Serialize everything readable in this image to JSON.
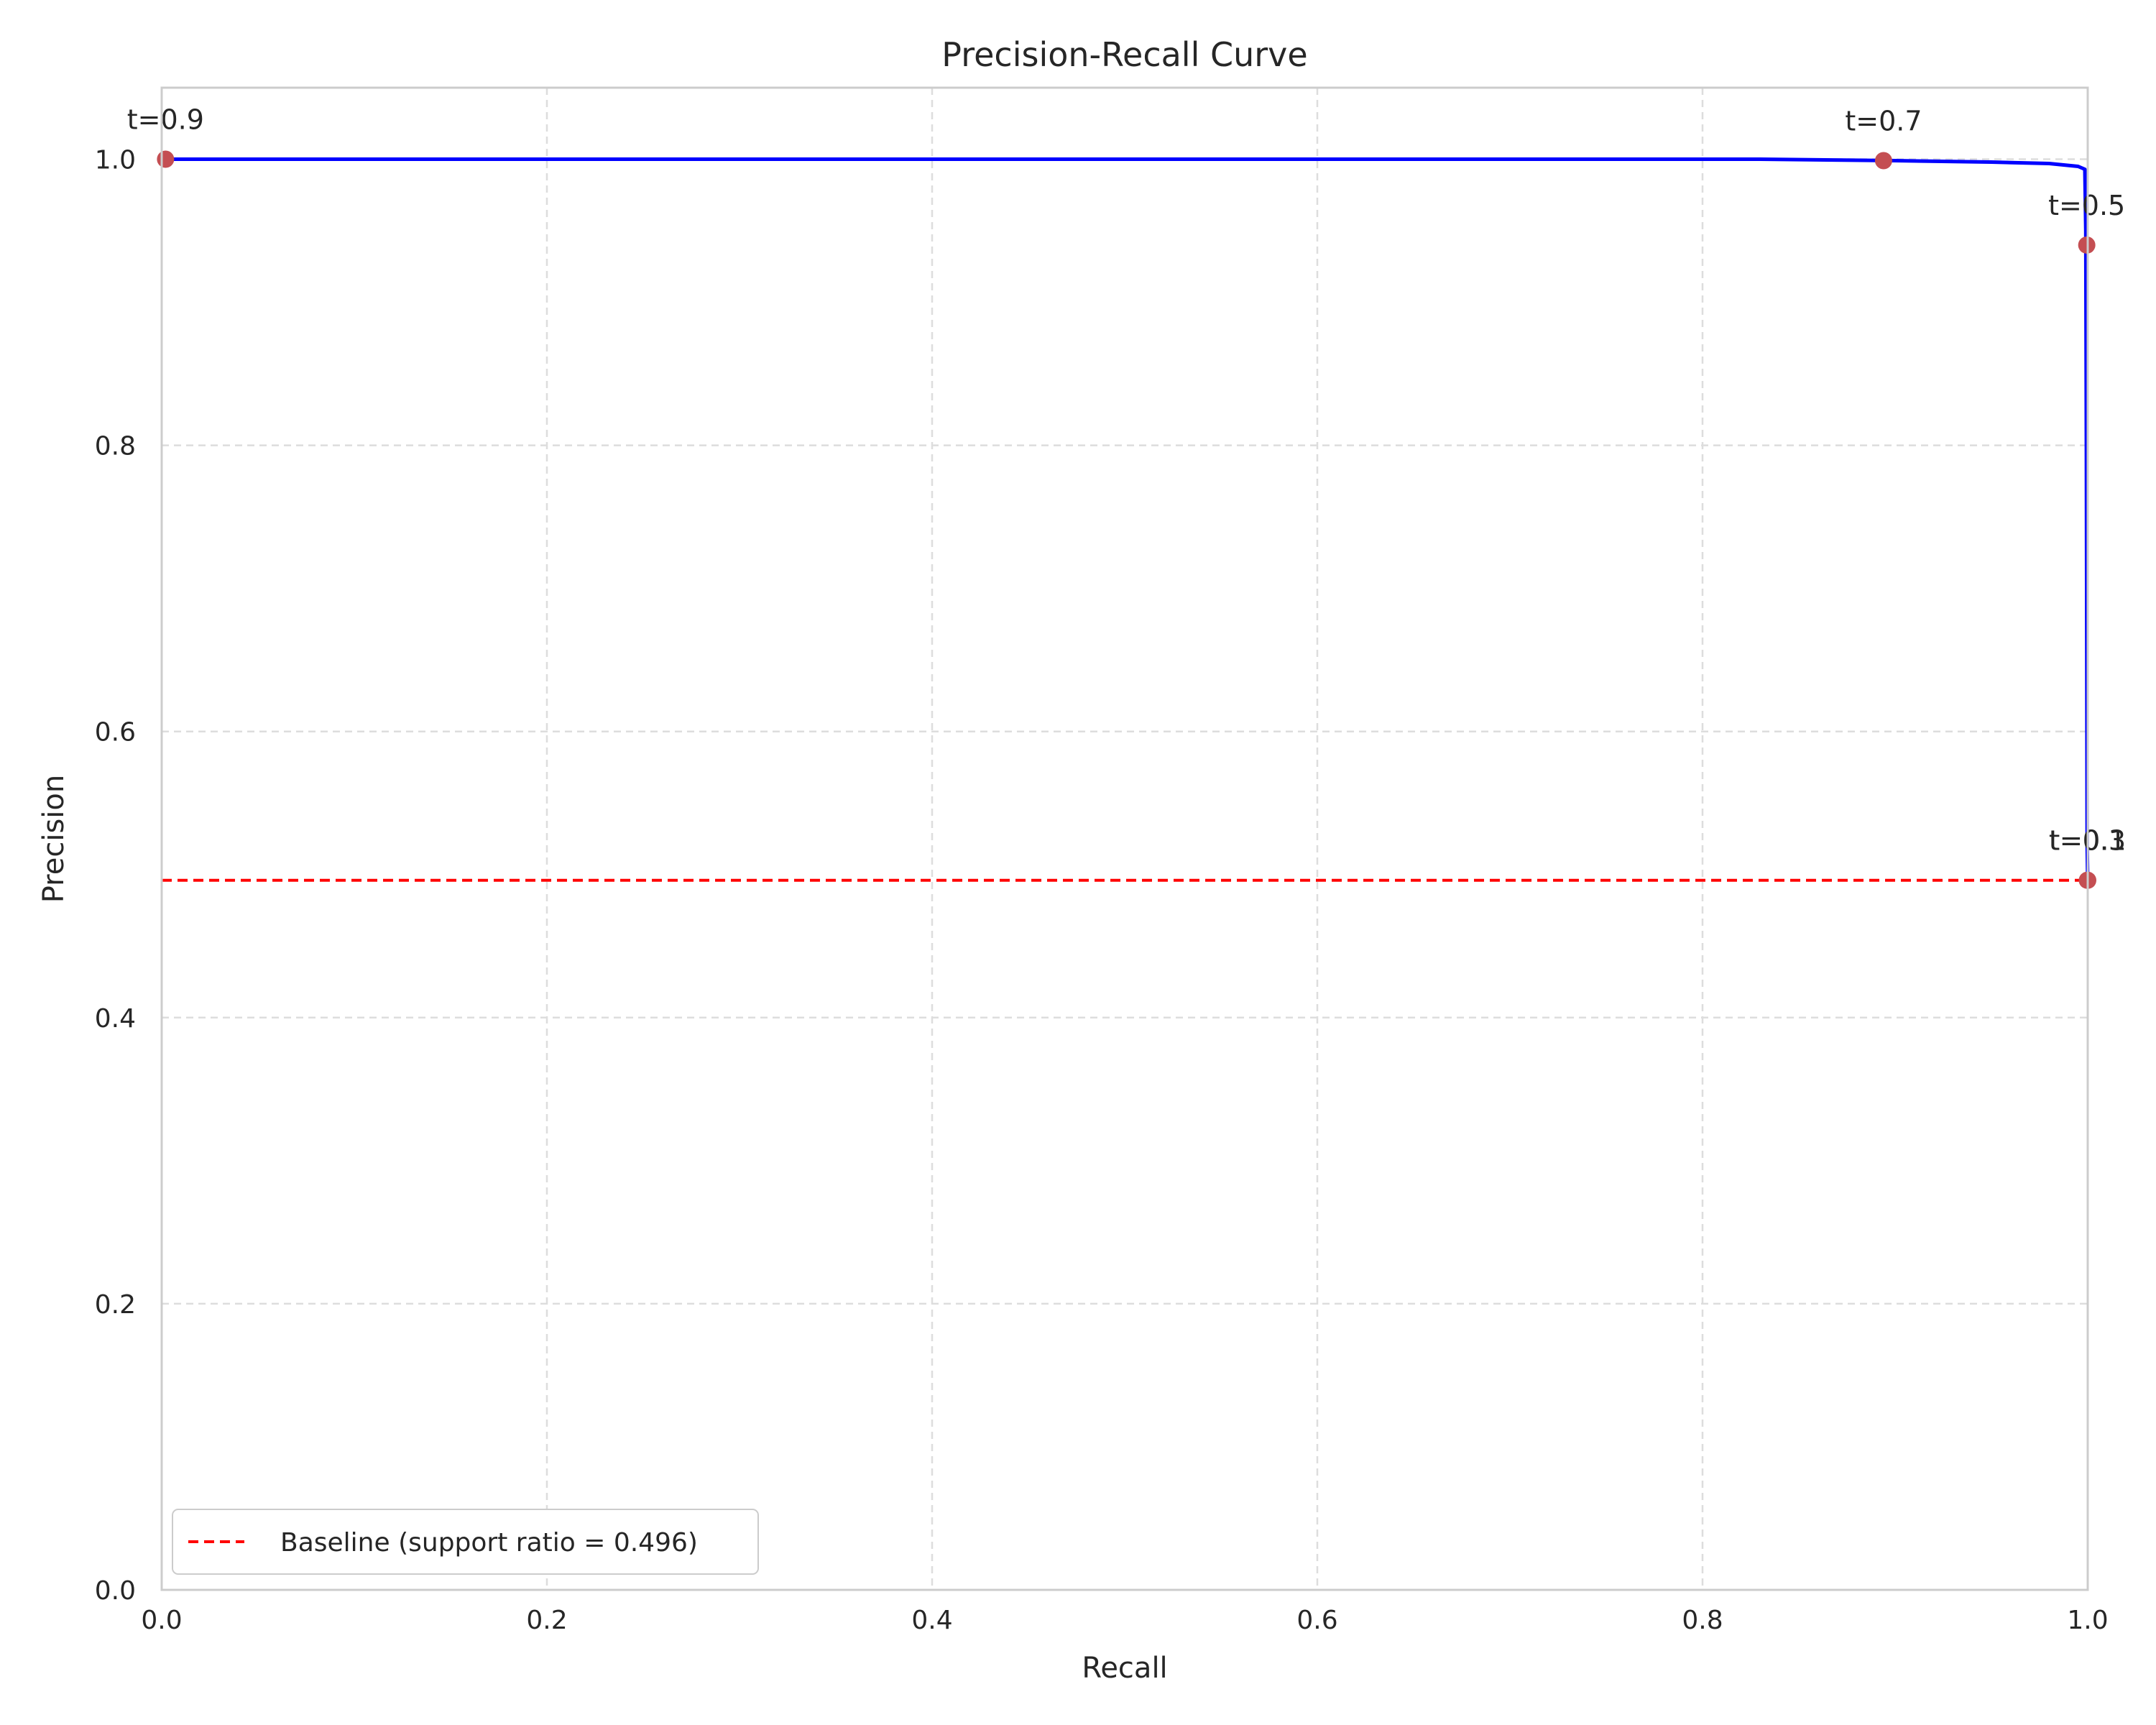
{
  "chart_data": {
    "type": "line",
    "title": "Precision-Recall Curve",
    "xlabel": "Recall",
    "ylabel": "Precision",
    "xlim": [
      0,
      1
    ],
    "ylim": [
      0,
      1.05
    ],
    "x_ticks": [
      "0.0",
      "0.2",
      "0.4",
      "0.6",
      "0.8",
      "1.0"
    ],
    "y_ticks": [
      "0.0",
      "0.2",
      "0.4",
      "0.6",
      "0.8",
      "1.0"
    ],
    "grid": true,
    "legend_position": "lower-left",
    "series": [
      {
        "color": "#0000ff",
        "style": "solid",
        "x": [
          0.0,
          0.1,
          0.3,
          0.5,
          0.7,
          0.83,
          0.9,
          0.95,
          0.98,
          0.995,
          0.9985,
          0.999,
          0.9993,
          0.9995,
          0.9997,
          1.0
        ],
        "y": [
          1.0,
          1.0,
          1.0,
          1.0,
          1.0,
          1.0,
          0.999,
          0.998,
          0.997,
          0.995,
          0.993,
          0.95,
          0.8,
          0.65,
          0.52,
          0.496
        ]
      },
      {
        "name": "Baseline (support ratio = 0.496)",
        "color": "#ff0000",
        "style": "dashed",
        "x": [
          0,
          1
        ],
        "y": [
          0.496,
          0.496
        ]
      }
    ],
    "annotations": [
      {
        "label": "t=0.9",
        "x": 0.002,
        "y": 1.0
      },
      {
        "label": "t=0.7",
        "x": 0.894,
        "y": 0.999
      },
      {
        "label": "t=0.5",
        "x": 0.9995,
        "y": 0.94
      },
      {
        "label": "t=0.3",
        "x": 0.9998,
        "y": 0.496
      },
      {
        "label": "t=0.1",
        "x": 1.0,
        "y": 0.496
      }
    ],
    "marker_color": "#c44e52"
  }
}
